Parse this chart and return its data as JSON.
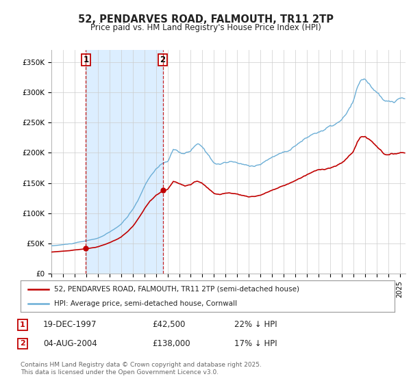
{
  "title": "52, PENDARVES ROAD, FALMOUTH, TR11 2TP",
  "subtitle": "Price paid vs. HM Land Registry's House Price Index (HPI)",
  "hpi_color": "#6baed6",
  "price_color": "#c00000",
  "shade_color": "#dceeff",
  "background_color": "#ffffff",
  "plot_bg_color": "#ffffff",
  "ylim": [
    0,
    370000
  ],
  "yticks": [
    0,
    50000,
    100000,
    150000,
    200000,
    250000,
    300000,
    350000
  ],
  "ytick_labels": [
    "£0",
    "£50K",
    "£100K",
    "£150K",
    "£200K",
    "£250K",
    "£300K",
    "£350K"
  ],
  "sale1_date_num": 1997.97,
  "sale1_price": 42500,
  "sale1_label": "1",
  "sale2_date_num": 2004.59,
  "sale2_price": 138000,
  "sale2_label": "2",
  "legend_line1": "52, PENDARVES ROAD, FALMOUTH, TR11 2TP (semi-detached house)",
  "legend_line2": "HPI: Average price, semi-detached house, Cornwall",
  "table_row1": [
    "1",
    "19-DEC-1997",
    "£42,500",
    "22% ↓ HPI"
  ],
  "table_row2": [
    "2",
    "04-AUG-2004",
    "£138,000",
    "17% ↓ HPI"
  ],
  "footer": "Contains HM Land Registry data © Crown copyright and database right 2025.\nThis data is licensed under the Open Government Licence v3.0.",
  "xmin": 1995.0,
  "xmax": 2025.5
}
